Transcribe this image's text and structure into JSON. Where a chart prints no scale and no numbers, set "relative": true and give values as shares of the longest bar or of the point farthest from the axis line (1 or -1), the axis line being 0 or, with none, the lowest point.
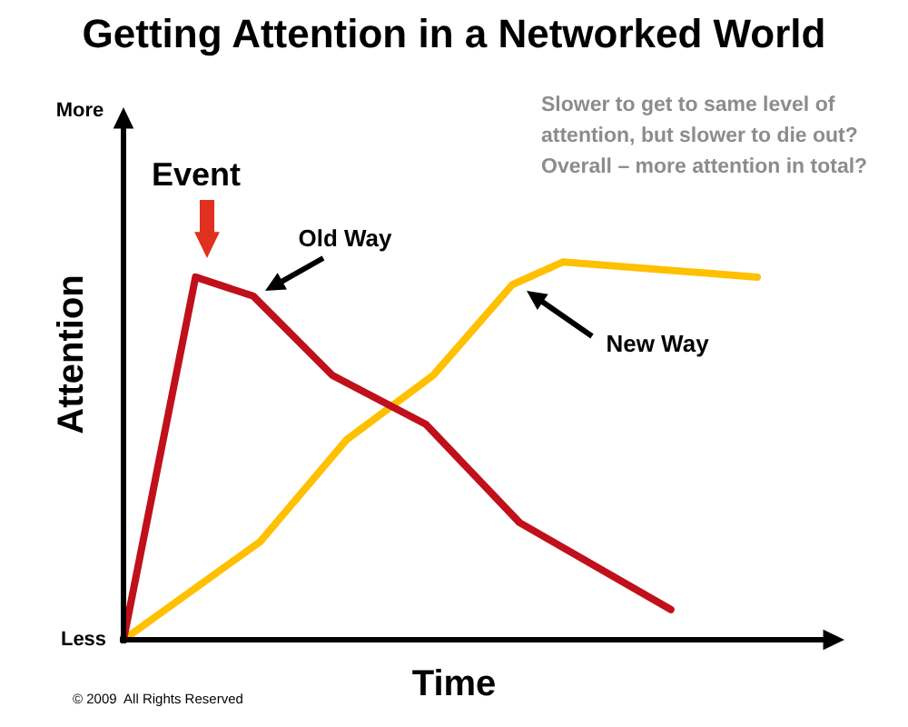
{
  "chart_data": {
    "type": "line",
    "title": "Getting Attention in a Networked World",
    "xlabel": "Time",
    "ylabel": "Attention",
    "relative": true,
    "legend": false,
    "marker": "none",
    "line_style": "solid",
    "categories": [
      null,
      null,
      null,
      null,
      null,
      null,
      null,
      null,
      null,
      null,
      null,
      null,
      null,
      null,
      null,
      null,
      null,
      null,
      null,
      null,
      null,
      null,
      null,
      null,
      null,
      null,
      null,
      null,
      null,
      null,
      null,
      null,
      null,
      null,
      null,
      null,
      null,
      null,
      null,
      null,
      null,
      null,
      null,
      null,
      null,
      null,
      null,
      null,
      null,
      null,
      null,
      null,
      null,
      null,
      null,
      null,
      null,
      null,
      null,
      null,
      null,
      null,
      null,
      null,
      null,
      null,
      null,
      null,
      null,
      null,
      null,
      null,
      null,
      null,
      null,
      null,
      null,
      null,
      null,
      null,
      null,
      null,
      null,
      null,
      null,
      null,
      null,
      null,
      null
    ],
    "series": [
      {
        "color": "#c0101c",
        "values": [
          0,
          null,
          null,
          null,
          null,
          null,
          null,
          null,
          null,
          null,
          0.96,
          null,
          null,
          null,
          null,
          null,
          null,
          null,
          0.91,
          null,
          null,
          null,
          null,
          null,
          null,
          null,
          null,
          null,
          null,
          0.7,
          null,
          null,
          null,
          null,
          null,
          null,
          null,
          null,
          null,
          null,
          null,
          null,
          0.57,
          null,
          null,
          null,
          null,
          null,
          null,
          null,
          null,
          null,
          null,
          null,
          null,
          0.31,
          null,
          null,
          null,
          null,
          null,
          null,
          null,
          null,
          null,
          null,
          null,
          null,
          null,
          null,
          null,
          null,
          null,
          null,
          null,
          null,
          0.08,
          null,
          null,
          null,
          null,
          null,
          null,
          null,
          null,
          null,
          null,
          null,
          null
        ]
      },
      {
        "color": "#ffc000",
        "values": [
          0,
          null,
          null,
          null,
          null,
          null,
          null,
          null,
          null,
          null,
          null,
          null,
          null,
          null,
          null,
          null,
          null,
          null,
          null,
          0.26,
          null,
          null,
          null,
          null,
          null,
          null,
          null,
          null,
          null,
          null,
          null,
          0.53,
          null,
          null,
          null,
          null,
          null,
          null,
          null,
          null,
          null,
          null,
          null,
          0.7,
          null,
          null,
          null,
          null,
          null,
          null,
          null,
          null,
          null,
          null,
          0.94,
          null,
          null,
          null,
          null,
          null,
          null,
          1,
          null,
          null,
          null,
          null,
          null,
          null,
          null,
          null,
          null,
          null,
          null,
          null,
          null,
          null,
          null,
          null,
          null,
          null,
          null,
          null,
          null,
          null,
          null,
          null,
          null,
          null,
          0.96
        ]
      }
    ],
    "annotations": [
      "Slower to get to same level of\nattention, but slower to die out?\nOverall – more attention in total?",
      "More",
      "Less",
      "© 2009  All Rights Reserved",
      "Event",
      "Old Way",
      "New Way"
    ]
  }
}
